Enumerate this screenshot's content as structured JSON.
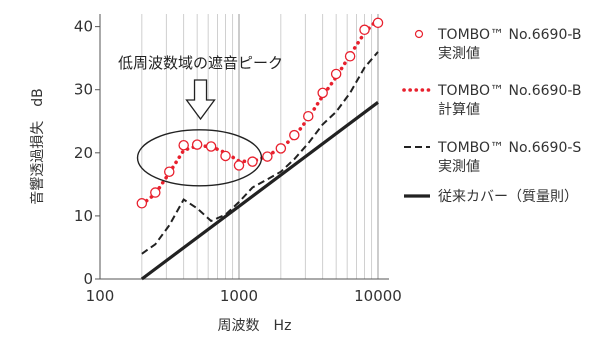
{
  "chart_data": {
    "type": "line",
    "x_scale": "log",
    "xlim": [
      100,
      12000
    ],
    "ylim": [
      0,
      42
    ],
    "xticks": [
      100,
      1000,
      10000
    ],
    "xtick_labels": [
      "100",
      "1000",
      "10000"
    ],
    "yticks": [
      0,
      10,
      20,
      30,
      40
    ],
    "ytick_labels": [
      "0",
      "10",
      "20",
      "30",
      "40"
    ],
    "xlabel": "周波数　Hz",
    "ylabel": "音響透過損失　dB",
    "grid": "vertical minor grid",
    "legend_placement": "right",
    "annotation": "低周波数域の遮音ピーク",
    "series": [
      {
        "name": [
          "TOMBO™ No.6690-B",
          "実測値"
        ],
        "style": "circles",
        "color": "#e8212e",
        "points": [
          [
            200,
            12
          ],
          [
            250,
            13.7
          ],
          [
            315,
            17
          ],
          [
            400,
            21.2
          ],
          [
            500,
            21.3
          ],
          [
            630,
            21
          ],
          [
            800,
            19.5
          ],
          [
            1000,
            18
          ],
          [
            1250,
            18.6
          ],
          [
            1600,
            19.4
          ],
          [
            2000,
            20.7
          ],
          [
            2500,
            22.8
          ],
          [
            3150,
            25.8
          ],
          [
            4000,
            29.5
          ],
          [
            5000,
            32.5
          ],
          [
            6300,
            35.3
          ],
          [
            8000,
            39.5
          ],
          [
            10000,
            40.6
          ]
        ]
      },
      {
        "name": [
          "TOMBO™ No.6690-B",
          "計算値"
        ],
        "style": "dotted",
        "color": "#e8212e",
        "points": [
          [
            200,
            11.8
          ],
          [
            250,
            13.5
          ],
          [
            315,
            16.8
          ],
          [
            400,
            20.4
          ],
          [
            500,
            21.1
          ],
          [
            630,
            21
          ],
          [
            800,
            20
          ],
          [
            1000,
            18.7
          ],
          [
            1250,
            18.6
          ],
          [
            1600,
            19.5
          ],
          [
            2000,
            20.8
          ],
          [
            2500,
            22.5
          ],
          [
            3150,
            25.5
          ],
          [
            4000,
            29
          ],
          [
            5000,
            32
          ],
          [
            6300,
            35.5
          ],
          [
            8000,
            39
          ],
          [
            10000,
            41.2
          ]
        ]
      },
      {
        "name": [
          "TOMBO™ No.6690-S",
          "実測値"
        ],
        "style": "dashed",
        "color": "#222222",
        "points": [
          [
            200,
            4
          ],
          [
            250,
            5.5
          ],
          [
            315,
            8.5
          ],
          [
            400,
            12.6
          ],
          [
            500,
            11.2
          ],
          [
            630,
            9.2
          ],
          [
            800,
            10.2
          ],
          [
            1000,
            12.2
          ],
          [
            1250,
            14.5
          ],
          [
            1600,
            15.8
          ],
          [
            2000,
            17
          ],
          [
            2500,
            19
          ],
          [
            3150,
            21.5
          ],
          [
            4000,
            24.5
          ],
          [
            5000,
            26.5
          ],
          [
            6300,
            29.5
          ],
          [
            8000,
            33.5
          ],
          [
            10000,
            36
          ]
        ]
      },
      {
        "name": [
          "従来カバー（質量則）"
        ],
        "style": "solid",
        "color": "#222222",
        "points": [
          [
            200,
            0
          ],
          [
            10000,
            28
          ]
        ]
      }
    ]
  }
}
